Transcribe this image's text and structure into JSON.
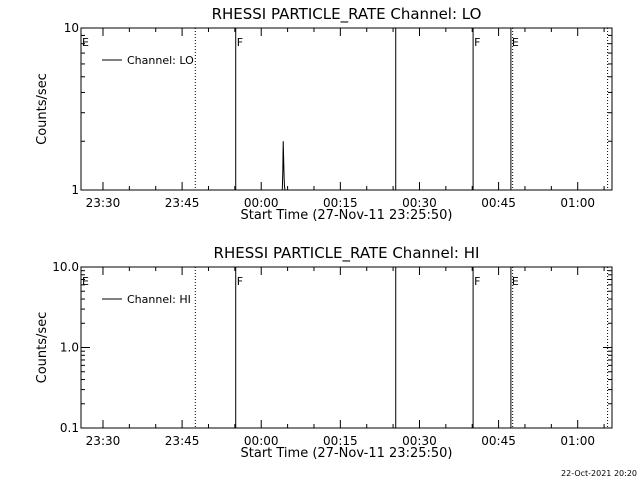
{
  "stamp": "22-Oct-2021 20:20",
  "chart_data": [
    {
      "type": "line",
      "title": "RHESSI PARTICLE_RATE Channel: LO",
      "xlabel": "Start Time (27-Nov-11 23:25:50)",
      "ylabel": "Counts/sec",
      "yscale": "log",
      "xlim": [
        "23:25:50",
        "01:06:30"
      ],
      "ylim": [
        1,
        10
      ],
      "x_ticks": [
        "23:30",
        "23:45",
        "00:00",
        "00:15",
        "00:30",
        "00:45",
        "01:00"
      ],
      "y_ticks": [
        "1",
        "10"
      ],
      "legend": {
        "label": "Channel: LO",
        "position": "top-left"
      },
      "series": [
        {
          "name": "Channel: LO",
          "x": [
            "00:04:00",
            "00:04:05",
            "00:04:10",
            "00:04:15",
            "00:04:20",
            "00:04:25",
            "00:04:30"
          ],
          "y": [
            1,
            1.3,
            2.0,
            1.6,
            1.2,
            1.05,
            1
          ]
        }
      ],
      "markers": [
        {
          "time": "23:47:30",
          "style": "dotted",
          "label": ""
        },
        {
          "time": "23:55:10",
          "style": "solid",
          "label": "F"
        },
        {
          "time": "00:25:30",
          "style": "solid",
          "label": ""
        },
        {
          "time": "00:40:10",
          "style": "solid",
          "label": "F"
        },
        {
          "time": "00:47:20",
          "style": "solid",
          "label": "E"
        },
        {
          "time": "00:47:40",
          "style": "dotted",
          "label": ""
        },
        {
          "time": "01:05:40",
          "style": "dotted",
          "label": ""
        },
        {
          "time": "23:25:50",
          "style": "none",
          "label": "E"
        }
      ]
    },
    {
      "type": "line",
      "title": "RHESSI PARTICLE_RATE Channel: HI",
      "xlabel": "Start Time (27-Nov-11 23:25:50)",
      "ylabel": "Counts/sec",
      "yscale": "log",
      "xlim": [
        "23:25:50",
        "01:06:30"
      ],
      "ylim": [
        0.1,
        10
      ],
      "x_ticks": [
        "23:30",
        "23:45",
        "00:00",
        "00:15",
        "00:30",
        "00:45",
        "01:00"
      ],
      "y_ticks": [
        "0.1",
        "1.0",
        "10.0"
      ],
      "legend": {
        "label": "Channel: HI",
        "position": "top-left"
      },
      "series": [
        {
          "name": "Channel: HI",
          "x": [],
          "y": []
        }
      ],
      "markers": [
        {
          "time": "23:47:30",
          "style": "dotted",
          "label": ""
        },
        {
          "time": "23:55:10",
          "style": "solid",
          "label": "F"
        },
        {
          "time": "00:25:30",
          "style": "solid",
          "label": ""
        },
        {
          "time": "00:40:10",
          "style": "solid",
          "label": "F"
        },
        {
          "time": "00:47:20",
          "style": "solid",
          "label": "E"
        },
        {
          "time": "00:47:40",
          "style": "dotted",
          "label": ""
        },
        {
          "time": "01:05:40",
          "style": "dotted",
          "label": ""
        },
        {
          "time": "23:25:50",
          "style": "none",
          "label": "E"
        }
      ]
    }
  ]
}
